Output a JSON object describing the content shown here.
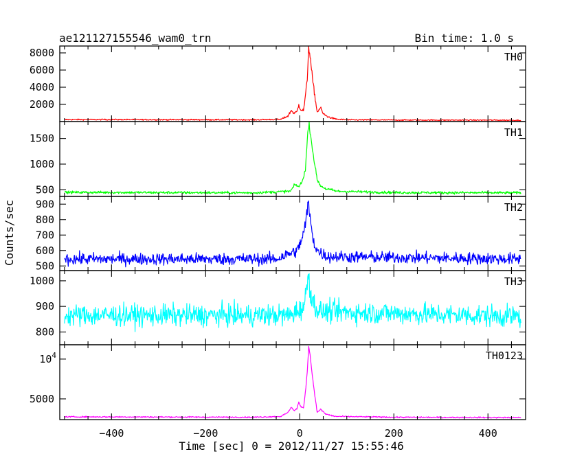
{
  "chart_data": {
    "type": "line",
    "title": "ae121127155546_wam0_trn",
    "subtitle": "Bin time: 1.0 s",
    "xlabel": "Time [sec] 0 = 2012/11/27 15:55:46",
    "ylabel": "Counts/sec",
    "xlim": [
      -510,
      480
    ],
    "x_ticks": [
      "−400",
      "−200",
      "0",
      "200",
      "400"
    ],
    "x_tick_values": [
      -400,
      -200,
      0,
      200,
      400
    ],
    "grid": false,
    "panels": [
      {
        "name": "TH0",
        "color": "#ff0000",
        "ylim": [
          0,
          8800
        ],
        "y_ticks": [
          "2000",
          "4000",
          "6000",
          "8000"
        ],
        "y_tick_values": [
          2000,
          4000,
          6000,
          8000
        ],
        "baseline": 200,
        "noise": 70,
        "points": [
          [
            -500,
            230
          ],
          [
            -400,
            230
          ],
          [
            -300,
            215
          ],
          [
            -200,
            210
          ],
          [
            -100,
            200
          ],
          [
            -40,
            260
          ],
          [
            -25,
            650
          ],
          [
            -18,
            1300
          ],
          [
            -12,
            950
          ],
          [
            -6,
            1150
          ],
          [
            -2,
            1950
          ],
          [
            2,
            1400
          ],
          [
            8,
            1300
          ],
          [
            12,
            2900
          ],
          [
            16,
            5000
          ],
          [
            19,
            8800
          ],
          [
            22,
            7600
          ],
          [
            27,
            5000
          ],
          [
            32,
            3000
          ],
          [
            37,
            1100
          ],
          [
            44,
            1600
          ],
          [
            50,
            900
          ],
          [
            60,
            550
          ],
          [
            75,
            300
          ],
          [
            100,
            200
          ],
          [
            200,
            180
          ],
          [
            300,
            170
          ],
          [
            400,
            170
          ],
          [
            470,
            150
          ]
        ]
      },
      {
        "name": "TH1",
        "color": "#00ff00",
        "ylim": [
          370,
          1830
        ],
        "y_ticks": [
          "500",
          "1000",
          "1500"
        ],
        "y_tick_values": [
          500,
          1000,
          1500
        ],
        "baseline": 440,
        "noise": 25,
        "points": [
          [
            -500,
            450
          ],
          [
            -300,
            445
          ],
          [
            -100,
            440
          ],
          [
            -20,
            470
          ],
          [
            -10,
            600
          ],
          [
            -2,
            560
          ],
          [
            5,
            650
          ],
          [
            12,
            900
          ],
          [
            17,
            1600
          ],
          [
            20,
            1790
          ],
          [
            24,
            1500
          ],
          [
            30,
            1100
          ],
          [
            37,
            700
          ],
          [
            44,
            580
          ],
          [
            55,
            520
          ],
          [
            80,
            470
          ],
          [
            200,
            445
          ],
          [
            470,
            440
          ]
        ]
      },
      {
        "name": "TH2",
        "color": "#0000ff",
        "ylim": [
          470,
          950
        ],
        "y_ticks": [
          "500",
          "600",
          "700",
          "800",
          "900"
        ],
        "y_tick_values": [
          500,
          600,
          700,
          800,
          900
        ],
        "baseline": 545,
        "noise": 38,
        "points": [
          [
            -500,
            545
          ],
          [
            -300,
            545
          ],
          [
            -50,
            545
          ],
          [
            -5,
            600
          ],
          [
            5,
            680
          ],
          [
            12,
            760
          ],
          [
            18,
            920
          ],
          [
            22,
            800
          ],
          [
            30,
            650
          ],
          [
            40,
            590
          ],
          [
            60,
            560
          ],
          [
            470,
            545
          ]
        ]
      },
      {
        "name": "TH3",
        "color": "#00ffff",
        "ylim": [
          750,
          1040
        ],
        "y_ticks": [
          "800",
          "900",
          "1000"
        ],
        "y_tick_values": [
          800,
          900,
          1000
        ],
        "baseline": 865,
        "noise": 42,
        "points": [
          [
            -500,
            865
          ],
          [
            -300,
            865
          ],
          [
            -20,
            865
          ],
          [
            10,
            900
          ],
          [
            18,
            1030
          ],
          [
            25,
            930
          ],
          [
            40,
            880
          ],
          [
            470,
            860
          ]
        ]
      },
      {
        "name": "TH0123",
        "color": "#ff00ff",
        "ylim": [
          2400,
          11800
        ],
        "y_ticks": [
          "5000",
          "10^4"
        ],
        "y_tick_values": [
          5000,
          10000
        ],
        "baseline": 2700,
        "noise": 80,
        "points": [
          [
            -500,
            2750
          ],
          [
            -300,
            2730
          ],
          [
            -100,
            2700
          ],
          [
            -40,
            2800
          ],
          [
            -25,
            3300
          ],
          [
            -18,
            4000
          ],
          [
            -12,
            3500
          ],
          [
            -6,
            3800
          ],
          [
            -2,
            4600
          ],
          [
            2,
            4000
          ],
          [
            8,
            3900
          ],
          [
            12,
            5800
          ],
          [
            16,
            8500
          ],
          [
            19,
            11600
          ],
          [
            22,
            10500
          ],
          [
            27,
            7800
          ],
          [
            32,
            5500
          ],
          [
            37,
            3300
          ],
          [
            44,
            3700
          ],
          [
            55,
            3100
          ],
          [
            75,
            2800
          ],
          [
            200,
            2700
          ],
          [
            470,
            2650
          ]
        ]
      }
    ]
  }
}
